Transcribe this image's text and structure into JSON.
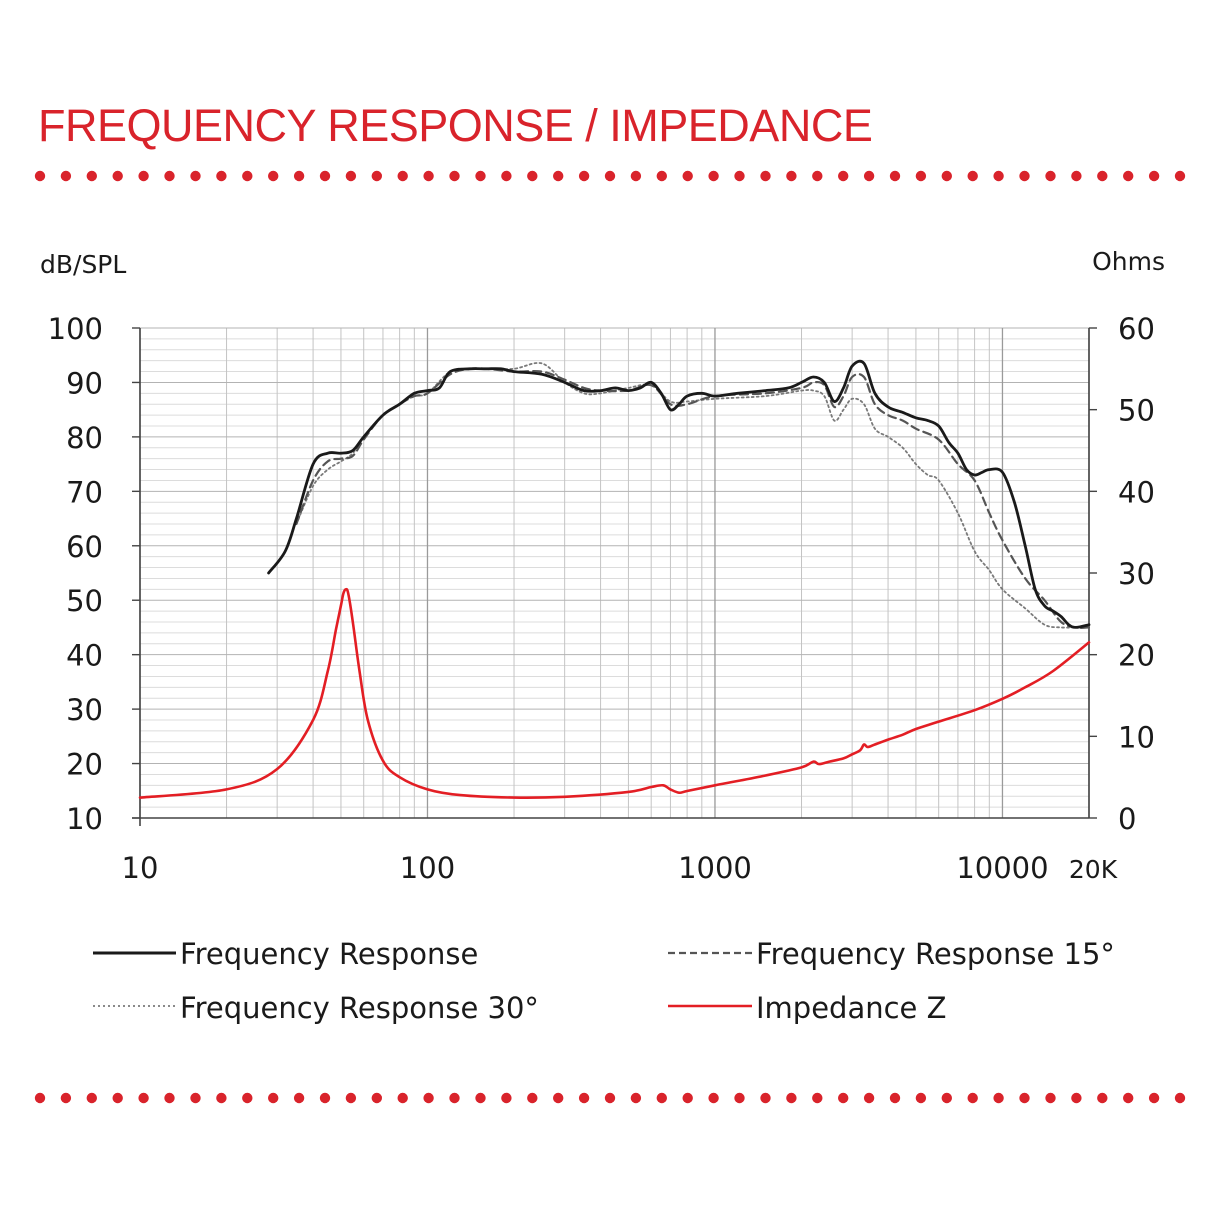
{
  "header": {
    "title": "FREQUENCY RESPONSE / IMPEDANCE",
    "accent_color": "#d9232b"
  },
  "chart_data": {
    "type": "line",
    "xscale": "log",
    "xlim": [
      10,
      20000
    ],
    "x_ticks": [
      10,
      100,
      1000,
      10000,
      20000
    ],
    "x_tick_labels": [
      "10",
      "100",
      "1000",
      "10000",
      "20K"
    ],
    "ylabel_left": "dB/SPL",
    "ylabel_right": "Ohms",
    "ylim_left": [
      10,
      100
    ],
    "y_ticks_left": [
      10,
      20,
      30,
      40,
      50,
      60,
      70,
      80,
      90,
      100
    ],
    "ylim_right": [
      0,
      60
    ],
    "y_ticks_right": [
      0,
      10,
      20,
      30,
      40,
      50,
      60
    ],
    "grid": true,
    "legend_position": "bottom",
    "series": [
      {
        "name": "Frequency Response",
        "axis": "left",
        "color": "#1a1a1a",
        "style": "solid",
        "x": [
          28,
          32,
          35,
          40,
          45,
          50,
          55,
          60,
          70,
          80,
          90,
          100,
          110,
          120,
          140,
          160,
          180,
          200,
          250,
          300,
          350,
          400,
          450,
          500,
          550,
          600,
          650,
          700,
          750,
          800,
          900,
          1000,
          1200,
          1500,
          1800,
          2000,
          2200,
          2400,
          2600,
          2800,
          3000,
          3300,
          3600,
          4000,
          4500,
          5000,
          5500,
          6000,
          6500,
          7000,
          7500,
          8000,
          8500,
          9000,
          10000,
          11000,
          12000,
          13000,
          14000,
          15000,
          16000,
          17000,
          18000,
          20000
        ],
        "y": [
          55,
          59,
          65,
          75,
          77,
          77,
          77.5,
          80,
          84,
          86,
          88,
          88.5,
          89,
          92,
          92.5,
          92.5,
          92.5,
          92,
          91.5,
          90,
          88.5,
          88.5,
          89,
          88.5,
          89,
          90,
          88,
          85,
          86,
          87.5,
          88,
          87.5,
          88,
          88.5,
          89,
          90,
          91,
          90,
          86.5,
          89,
          93,
          93.5,
          88,
          85.5,
          84.5,
          83.5,
          83,
          82,
          79,
          77,
          74,
          73,
          73.5,
          74,
          73.5,
          68,
          60,
          52,
          49,
          48,
          47,
          45.5,
          45,
          45.5
        ]
      },
      {
        "name": "Frequency Response 15°",
        "axis": "left",
        "color": "#555555",
        "style": "dashed",
        "x": [
          35,
          40,
          45,
          50,
          55,
          60,
          70,
          80,
          90,
          100,
          120,
          140,
          160,
          200,
          250,
          300,
          350,
          400,
          500,
          600,
          700,
          800,
          1000,
          1500,
          2000,
          2200,
          2400,
          2600,
          2800,
          3000,
          3300,
          3600,
          4000,
          4500,
          5000,
          6000,
          7000,
          8000,
          9000,
          10000,
          12000,
          14000,
          16000,
          18000,
          20000
        ],
        "y": [
          64,
          72,
          75.5,
          76,
          76.5,
          79.5,
          84,
          86,
          87.5,
          88,
          91.5,
          92.5,
          92.5,
          92,
          92,
          90.5,
          89,
          88.5,
          88.5,
          89.5,
          86,
          86,
          87.5,
          88,
          89,
          90,
          89.5,
          85.5,
          87.5,
          91,
          91,
          86,
          84,
          83,
          81.5,
          79.5,
          75,
          72,
          66,
          61,
          54,
          50,
          46,
          45,
          45
        ]
      },
      {
        "name": "Frequency Response 30°",
        "axis": "left",
        "color": "#7a7a7a",
        "style": "dotted",
        "x": [
          35,
          40,
          45,
          50,
          55,
          60,
          70,
          80,
          90,
          100,
          120,
          140,
          160,
          200,
          250,
          300,
          350,
          400,
          500,
          600,
          700,
          800,
          1000,
          1500,
          2000,
          2200,
          2400,
          2600,
          2800,
          3000,
          3300,
          3600,
          4000,
          4500,
          5000,
          5500,
          6000,
          7000,
          8000,
          9000,
          10000,
          12000,
          14000,
          16000,
          18000,
          20000
        ],
        "y": [
          64,
          71,
          74,
          75.5,
          77,
          80,
          84,
          86,
          87.5,
          88,
          92,
          92.5,
          92.5,
          92.5,
          93.5,
          90,
          88,
          88,
          89,
          89.5,
          86.5,
          86.5,
          87,
          87.5,
          88.5,
          88.5,
          87.5,
          83,
          85,
          87,
          86,
          81.5,
          80,
          78,
          75,
          73,
          72,
          66,
          59,
          55.5,
          52,
          48.5,
          45.5,
          45,
          45,
          45
        ]
      },
      {
        "name": "Impedance Z",
        "axis": "right",
        "color": "#e31e24",
        "style": "solid",
        "x": [
          10,
          20,
          30,
          40,
          45,
          48,
          50,
          51,
          52,
          53,
          55,
          58,
          62,
          70,
          80,
          100,
          130,
          200,
          300,
          500,
          600,
          660,
          700,
          750,
          800,
          1000,
          1500,
          2000,
          2200,
          2300,
          2500,
          2800,
          3000,
          3200,
          3300,
          3400,
          3600,
          4000,
          4500,
          5000,
          6000,
          8000,
          10000,
          12000,
          15000,
          20000
        ],
        "y": [
          2.5,
          3.5,
          6,
          12,
          18,
          23,
          26,
          27.5,
          28,
          27.5,
          24,
          18,
          12,
          7,
          5,
          3.5,
          2.8,
          2.5,
          2.6,
          3.2,
          3.8,
          4,
          3.5,
          3.1,
          3.3,
          4,
          5.2,
          6.2,
          6.9,
          6.6,
          6.9,
          7.3,
          7.8,
          8.3,
          9,
          8.7,
          9,
          9.6,
          10.2,
          10.9,
          11.8,
          13.2,
          14.6,
          16,
          18,
          21.5
        ]
      }
    ]
  },
  "legend": {
    "items": [
      {
        "label": "Frequency Response"
      },
      {
        "label": "Frequency Response 15°"
      },
      {
        "label": "Frequency Response 30°"
      },
      {
        "label": "Impedance Z"
      }
    ]
  }
}
